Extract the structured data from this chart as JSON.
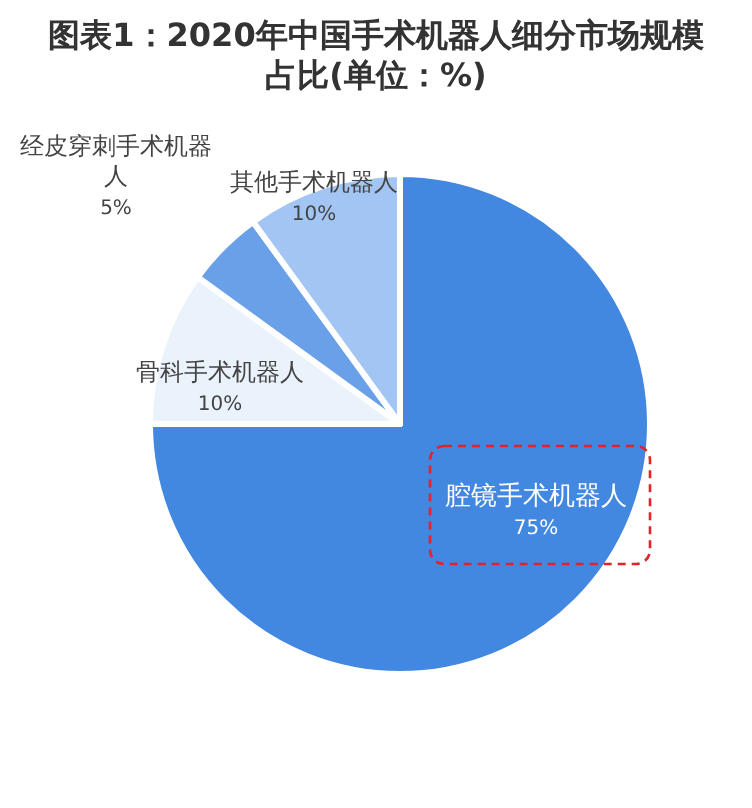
{
  "chart_data": {
    "type": "pie",
    "title": "图表1：2020年中国手术机器人细分市场规模占比(单位：%)",
    "categories": [
      "腔镜手术机器人",
      "骨科手术机器人",
      "经皮穿刺手术机器人",
      "其他手术机器人"
    ],
    "values": [
      75,
      10,
      5,
      10
    ],
    "colors": [
      "#4287e0",
      "#eaf2fc",
      "#6aa0e8",
      "#a3c5f3"
    ],
    "value_labels": [
      "75%",
      "10%",
      "5%",
      "10%"
    ]
  }
}
